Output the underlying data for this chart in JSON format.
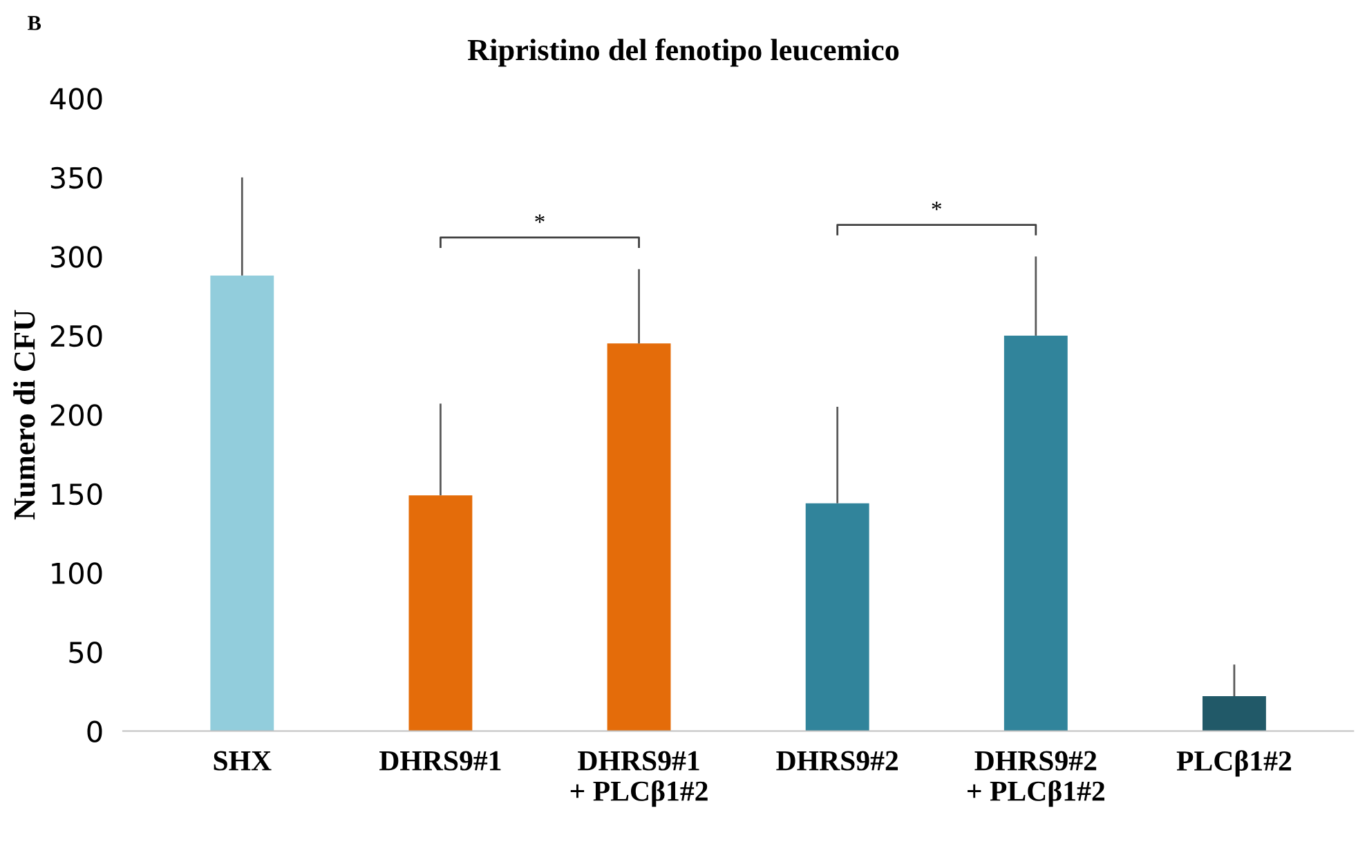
{
  "chart_data": {
    "type": "bar",
    "title": "Ripristino del fenotipo leucemico",
    "ylabel": "Numero di CFU",
    "categories": [
      "SHX",
      "DHRS9#1",
      "DHRS9#1\n+ PLCβ1#2",
      "DHRS9#2",
      "DHRS9#2\n+ PLCβ1#2",
      "PLCβ1#2"
    ],
    "values": [
      288,
      149,
      245,
      144,
      250,
      22
    ],
    "errors": [
      [
        288,
        350
      ],
      [
        149,
        207
      ],
      [
        245,
        292
      ],
      [
        144,
        205
      ],
      [
        250,
        300
      ],
      [
        22,
        42
      ]
    ],
    "colors": [
      "#92cddc",
      "#e46c0a",
      "#e46c0a",
      "#31849b",
      "#31849b",
      "#215968"
    ],
    "ylim": [
      0,
      400
    ],
    "yticks": [
      0,
      50,
      100,
      150,
      200,
      250,
      300,
      350,
      400
    ],
    "grid": false,
    "legend": false,
    "annotations": [
      "B",
      "*",
      "*"
    ]
  }
}
